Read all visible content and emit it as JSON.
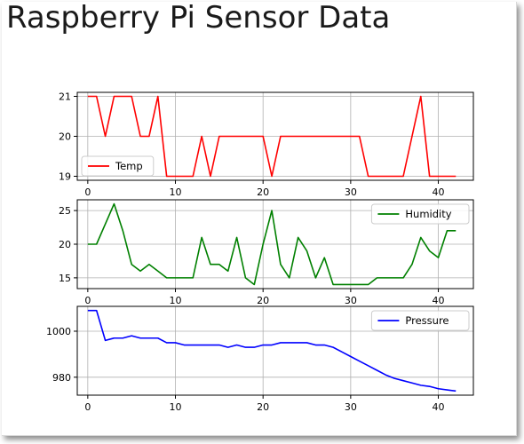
{
  "page": {
    "title": "Raspberry Pi Sensor Data"
  },
  "chart_data": [
    {
      "type": "line",
      "series": [
        {
          "name": "Temp",
          "color": "#ff0000",
          "x": [
            0,
            1,
            2,
            3,
            4,
            5,
            6,
            7,
            8,
            9,
            10,
            11,
            12,
            13,
            14,
            15,
            16,
            17,
            18,
            19,
            20,
            21,
            22,
            23,
            24,
            25,
            26,
            27,
            28,
            29,
            30,
            31,
            32,
            33,
            34,
            35,
            36,
            37,
            38,
            39,
            40,
            41,
            42
          ],
          "values": [
            21,
            21,
            20,
            21,
            21,
            21,
            20,
            20,
            21,
            19,
            19,
            19,
            19,
            20,
            19,
            20,
            20,
            20,
            20,
            20,
            20,
            19,
            20,
            20,
            20,
            20,
            20,
            20,
            20,
            20,
            20,
            20,
            19,
            19,
            19,
            19,
            19,
            20,
            21,
            19,
            19,
            19,
            19
          ]
        }
      ],
      "xlim": [
        -1.2,
        44
      ],
      "ylim": [
        18.9,
        21.1
      ],
      "xticks": [
        0,
        10,
        20,
        30,
        40
      ],
      "yticks": [
        19,
        20,
        21
      ],
      "xticklabels": [
        "0",
        "10",
        "20",
        "30",
        "40"
      ],
      "yticklabels": [
        "19",
        "20",
        "21"
      ],
      "grid": true,
      "legend": "lower-left",
      "title": "",
      "xlabel": "",
      "ylabel": ""
    },
    {
      "type": "line",
      "series": [
        {
          "name": "Humidity",
          "color": "#008000",
          "x": [
            0,
            1,
            2,
            3,
            4,
            5,
            6,
            7,
            8,
            9,
            10,
            11,
            12,
            13,
            14,
            15,
            16,
            17,
            18,
            19,
            20,
            21,
            22,
            23,
            24,
            25,
            26,
            27,
            28,
            29,
            30,
            31,
            32,
            33,
            34,
            35,
            36,
            37,
            38,
            39,
            40,
            41,
            42
          ],
          "values": [
            20,
            20,
            23,
            26,
            22,
            17,
            16,
            17,
            16,
            15,
            15,
            15,
            15,
            21,
            17,
            17,
            16,
            21,
            15,
            14,
            20,
            25,
            17,
            15,
            21,
            19,
            15,
            18,
            14,
            14,
            14,
            14,
            14,
            15,
            15,
            15,
            15,
            17,
            21,
            19,
            18,
            22,
            22
          ]
        }
      ],
      "xlim": [
        -1.2,
        44
      ],
      "ylim": [
        13.4,
        26.6
      ],
      "xticks": [
        0,
        10,
        20,
        30,
        40
      ],
      "yticks": [
        15,
        20,
        25
      ],
      "xticklabels": [
        "0",
        "10",
        "20",
        "30",
        "40"
      ],
      "yticklabels": [
        "15",
        "20",
        "25"
      ],
      "grid": true,
      "legend": "upper-right",
      "title": "",
      "xlabel": "",
      "ylabel": ""
    },
    {
      "type": "line",
      "series": [
        {
          "name": "Pressure",
          "color": "#0000ff",
          "x": [
            0,
            1,
            2,
            3,
            4,
            5,
            6,
            7,
            8,
            9,
            10,
            11,
            12,
            13,
            14,
            15,
            16,
            17,
            18,
            19,
            20,
            21,
            22,
            23,
            24,
            25,
            26,
            27,
            28,
            29,
            30,
            31,
            32,
            33,
            34,
            35,
            36,
            37,
            38,
            39,
            40,
            41,
            42
          ],
          "values": [
            1009,
            1009,
            996,
            997,
            997,
            998,
            997,
            997,
            997,
            995,
            995,
            994,
            994,
            994,
            994,
            994,
            993,
            994,
            993,
            993,
            994,
            994,
            995,
            995,
            995,
            995,
            994,
            994,
            993,
            991,
            989,
            987,
            985,
            983,
            981,
            979.5,
            978.5,
            977.5,
            976.5,
            976,
            975,
            974.5,
            974
          ]
        }
      ],
      "xlim": [
        -1.2,
        44
      ],
      "ylim": [
        972.2,
        1010.8
      ],
      "xticks": [
        0,
        10,
        20,
        30,
        40
      ],
      "yticks": [
        980,
        1000
      ],
      "xticklabels": [
        "0",
        "10",
        "20",
        "30",
        "40"
      ],
      "yticklabels": [
        "980",
        "1000"
      ],
      "grid": true,
      "legend": "upper-right",
      "title": "",
      "xlabel": "",
      "ylabel": ""
    }
  ]
}
